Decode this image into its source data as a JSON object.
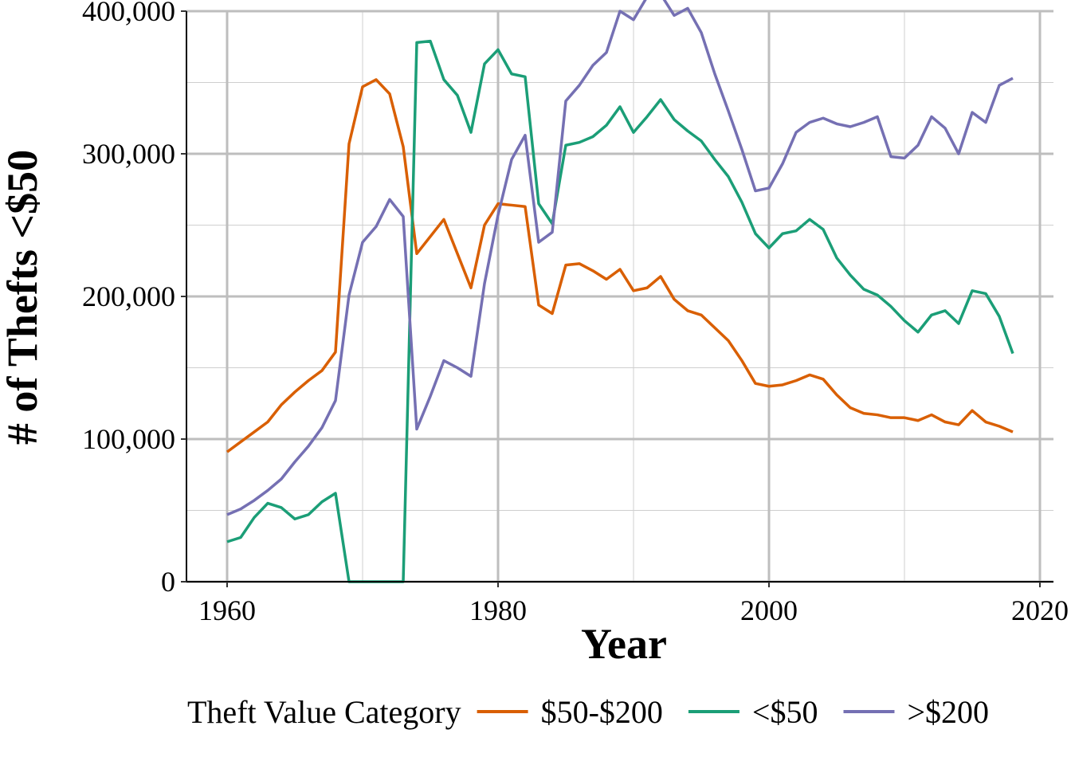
{
  "chart_data": {
    "type": "line",
    "title": "",
    "xlabel": "Year",
    "ylabel": "# of Thefts <$50",
    "xlim": [
      1957,
      2021
    ],
    "ylim": [
      0,
      400000
    ],
    "x_ticks": [
      1960,
      1980,
      2000,
      2020
    ],
    "x_tick_labels": [
      "1960",
      "1980",
      "2000",
      "2020"
    ],
    "y_ticks": [
      0,
      100000,
      200000,
      300000,
      400000
    ],
    "y_tick_labels": [
      "0",
      "100,000",
      "200,000",
      "300,000",
      "400,000"
    ],
    "grid": true,
    "legend": {
      "title": "Theft Value Category",
      "position": "bottom"
    },
    "x": [
      1960,
      1961,
      1962,
      1963,
      1964,
      1965,
      1966,
      1967,
      1968,
      1969,
      1970,
      1971,
      1972,
      1973,
      1974,
      1975,
      1976,
      1977,
      1978,
      1979,
      1980,
      1981,
      1982,
      1983,
      1984,
      1985,
      1986,
      1987,
      1988,
      1989,
      1990,
      1991,
      1992,
      1993,
      1994,
      1995,
      1996,
      1997,
      1998,
      1999,
      2000,
      2001,
      2002,
      2003,
      2004,
      2005,
      2006,
      2007,
      2008,
      2009,
      2010,
      2011,
      2012,
      2013,
      2014,
      2015,
      2016,
      2017,
      2018
    ],
    "series": [
      {
        "name": "$50-$200",
        "color": "#D95F02",
        "values": [
          91000,
          98000,
          105000,
          112000,
          124000,
          133000,
          141000,
          148000,
          161000,
          307000,
          347000,
          352000,
          342000,
          305000,
          230000,
          242000,
          254000,
          230000,
          206000,
          250000,
          265000,
          264000,
          263000,
          194000,
          188000,
          222000,
          223000,
          218000,
          212000,
          219000,
          204000,
          206000,
          214000,
          198000,
          190000,
          187000,
          178000,
          169000,
          155000,
          139000,
          137000,
          138000,
          141000,
          145000,
          142000,
          131000,
          122000,
          118000,
          117000,
          115000,
          115000,
          113000,
          117000,
          112000,
          110000,
          120000,
          112000,
          109000,
          105000
        ]
      },
      {
        "name": "<$50",
        "color": "#1B9E77",
        "values": [
          28000,
          31000,
          45000,
          55000,
          52000,
          44000,
          47000,
          56000,
          62000,
          0,
          0,
          0,
          0,
          0,
          378000,
          379000,
          352000,
          341000,
          315000,
          363000,
          373000,
          356000,
          354000,
          265000,
          251000,
          306000,
          308000,
          312000,
          320000,
          333000,
          315000,
          326000,
          338000,
          324000,
          316000,
          309000,
          296000,
          284000,
          266000,
          244000,
          234000,
          244000,
          246000,
          254000,
          247000,
          227000,
          215000,
          205000,
          201000,
          193000,
          183000,
          175000,
          187000,
          190000,
          181000,
          204000,
          202000,
          186000,
          160000
        ]
      },
      {
        "name": ">$200",
        "color": "#7570B3",
        "values": [
          47000,
          51000,
          57000,
          64000,
          72000,
          84000,
          95000,
          108000,
          127000,
          201000,
          238000,
          249000,
          268000,
          256000,
          107000,
          130000,
          155000,
          150000,
          144000,
          209000,
          257000,
          296000,
          313000,
          238000,
          245000,
          337000,
          348000,
          362000,
          371000,
          400000,
          394000,
          410000,
          412000,
          397000,
          402000,
          385000,
          356000,
          330000,
          303000,
          274000,
          276000,
          293000,
          315000,
          322000,
          325000,
          321000,
          319000,
          322000,
          326000,
          298000,
          297000,
          306000,
          326000,
          318000,
          300000,
          329000,
          322000,
          348000,
          353000
        ]
      }
    ]
  }
}
